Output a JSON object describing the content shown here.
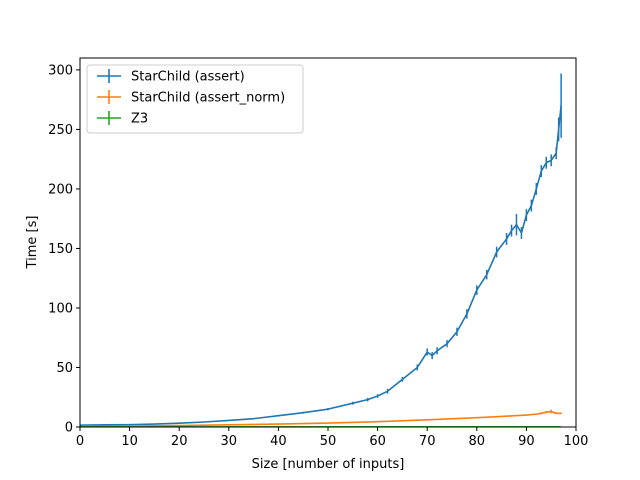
{
  "chart_data": {
    "type": "line",
    "xlabel": "Size [number of inputs]",
    "ylabel": "Time [s]",
    "xlim": [
      0,
      100
    ],
    "ylim": [
      0,
      310
    ],
    "xticks": [
      "0",
      "10",
      "20",
      "30",
      "40",
      "50",
      "60",
      "70",
      "80",
      "90",
      "100"
    ],
    "yticks": [
      "0",
      "50",
      "100",
      "150",
      "200",
      "250",
      "300"
    ],
    "grid": false,
    "legend_position": "top-left",
    "series": [
      {
        "name": "StarChild (assert)",
        "color": "#1f77b4",
        "x": [
          0,
          5,
          10,
          15,
          20,
          25,
          30,
          35,
          40,
          45,
          50,
          55,
          58,
          60,
          62,
          65,
          68,
          70,
          71,
          72,
          74,
          76,
          78,
          80,
          82,
          84,
          86,
          87,
          88,
          89,
          90,
          91,
          92,
          93,
          94,
          95,
          96,
          96.5,
          97
        ],
        "y": [
          1.5,
          1.8,
          2.0,
          2.5,
          3.2,
          4.2,
          5.5,
          7.0,
          9.5,
          12.0,
          15.0,
          20.0,
          23.0,
          26.0,
          30.0,
          40.0,
          50.0,
          63.0,
          60.0,
          64.0,
          70.0,
          80.0,
          95.0,
          115.0,
          128.0,
          147.0,
          158.0,
          165.0,
          170.0,
          163.0,
          178.0,
          186.0,
          200.0,
          215.0,
          222.0,
          224.0,
          230.0,
          250.0,
          270.0
        ],
        "err": [
          0.2,
          0.2,
          0.2,
          0.3,
          0.3,
          0.4,
          0.4,
          0.5,
          0.6,
          0.8,
          1.0,
          1.2,
          1.5,
          1.5,
          2.0,
          2.0,
          2.5,
          3.0,
          3.0,
          3.0,
          3.0,
          3.5,
          4.0,
          4.0,
          4.0,
          4.5,
          5.0,
          5.0,
          9.0,
          5.0,
          5.0,
          5.0,
          5.0,
          5.0,
          5.0,
          5.0,
          5.0,
          10.0,
          27.0
        ]
      },
      {
        "name": "StarChild (assert_norm)",
        "color": "#ff7f0e",
        "x": [
          0,
          10,
          20,
          30,
          40,
          50,
          60,
          70,
          80,
          90,
          92,
          93,
          94,
          95,
          96,
          97
        ],
        "y": [
          0.5,
          0.8,
          1.2,
          1.8,
          2.5,
          3.3,
          4.5,
          6.0,
          7.8,
          10.0,
          10.8,
          11.5,
          12.5,
          13.0,
          11.5,
          11.5
        ],
        "err": [
          0.1,
          0.1,
          0.1,
          0.1,
          0.2,
          0.2,
          0.2,
          0.3,
          0.3,
          0.4,
          0.5,
          0.8,
          1.0,
          1.5,
          0.8,
          0.5
        ]
      },
      {
        "name": "Z3",
        "color": "#2ca02c",
        "x": [
          0,
          20,
          40,
          60,
          80,
          97
        ],
        "y": [
          0.05,
          0.05,
          0.06,
          0.07,
          0.08,
          0.08
        ],
        "err": [
          0,
          0,
          0,
          0,
          0,
          0
        ]
      }
    ]
  }
}
